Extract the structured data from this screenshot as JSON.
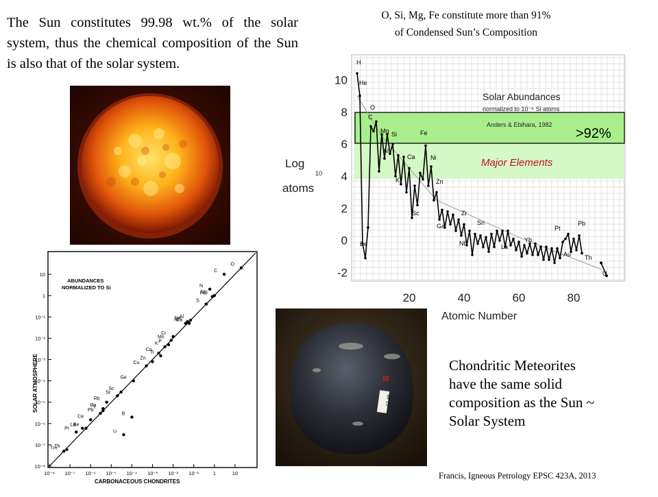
{
  "intro_text": "The Sun constitutes 99.98 wt.% of the solar system, thus the chemical composition of the Sun is also that of the solar system.",
  "top_caption": {
    "line1": "O, Si, Mg, Fe constitute more than 91%",
    "line2": "of Condensed Sun’s Composition"
  },
  "abundance_chart": {
    "title": "Solar Abundances",
    "subtitle": "normalized to 10⁻⁶ Si atoms",
    "reference": "Anders & Ebihara, 1982",
    "ylabel_main": "Log",
    "ylabel_sub": "10",
    "ylabel_unit": "atoms",
    "xlabel": "Atomic Number",
    "box_label": ">92%",
    "band_label": "Major Elements",
    "colors": {
      "band": "#a8ef8c",
      "band_light": "#d4f8c6",
      "box_edge": "#000000",
      "band_label": "#c1141b"
    }
  },
  "chart_data": [
    {
      "type": "line",
      "title": "Solar Abundances",
      "subtitle": "normalized to 10⁻⁶ Si atoms",
      "xlabel": "Atomic Number",
      "ylabel": "Log 10 atoms",
      "xlim": [
        0,
        98
      ],
      "ylim": [
        -3,
        11
      ],
      "xticks": [
        20,
        40,
        60,
        80
      ],
      "yticks": [
        -2,
        0,
        2,
        4,
        6,
        8,
        10
      ],
      "grid": true,
      "x": [
        1,
        2,
        3,
        4,
        5,
        6,
        7,
        8,
        9,
        10,
        11,
        12,
        13,
        14,
        15,
        16,
        17,
        18,
        19,
        20,
        21,
        22,
        23,
        24,
        25,
        26,
        27,
        28,
        29,
        30,
        31,
        32,
        33,
        34,
        35,
        36,
        37,
        38,
        39,
        40,
        41,
        42,
        43,
        44,
        45,
        46,
        47,
        48,
        49,
        50,
        51,
        52,
        53,
        54,
        55,
        56,
        57,
        58,
        59,
        60,
        61,
        62,
        63,
        64,
        65,
        66,
        67,
        68,
        69,
        70,
        71,
        72,
        73,
        74,
        75,
        76,
        77,
        78,
        79,
        80,
        81,
        82,
        83
      ],
      "y": [
        10.4,
        9.0,
        -0.2,
        -1.1,
        0.8,
        7.1,
        6.8,
        7.4,
        4.3,
        6.6,
        5.1,
        6.6,
        5.4,
        6.0,
        4.0,
        5.3,
        3.5,
        5.2,
        3.0,
        4.5,
        1.4,
        3.4,
        2.2,
        4.2,
        3.8,
        5.9,
        3.4,
        4.6,
        2.5,
        3.0,
        1.3,
        1.9,
        0.8,
        1.8,
        1.0,
        1.6,
        0.6,
        1.3,
        0.3,
        1.0,
        -0.3,
        0.6,
        -0.9,
        0.4,
        -0.2,
        0.3,
        -0.4,
        0.2,
        -0.7,
        0.4,
        -0.4,
        0.6,
        0.0,
        0.6,
        -0.4,
        0.6,
        -0.3,
        0.1,
        -0.6,
        -0.1,
        -1.0,
        -0.3,
        -0.8,
        -0.2,
        -0.9,
        -0.2,
        -0.9,
        -0.4,
        -1.2,
        -0.4,
        -1.2,
        -0.5,
        -1.4,
        -0.5,
        -1.1,
        -0.1,
        0.1,
        0.4,
        -0.7,
        0.1,
        -0.6,
        0.3,
        -0.8
      ]
    },
    {
      "type": "scatter",
      "xlabel": "CARBONACEOUS CHONDRITES",
      "ylabel": "SOLAR ATMOSPHERE",
      "title": "ABUNDANCES NORMALIZED TO Si",
      "xscale": "log",
      "yscale": "log",
      "xlim": [
        1e-08,
        100
      ],
      "ylim": [
        1e-08,
        100
      ],
      "xticks": [
        "10⁻⁸",
        "10⁻⁷",
        "10⁻⁶",
        "10⁻⁵",
        "10⁻⁴",
        "10⁻³",
        "10⁻²",
        "10⁻¹",
        "1",
        "10"
      ],
      "yticks": [
        "10",
        "1",
        "10⁻¹",
        "10⁻²",
        "10⁻³",
        "10⁻⁴",
        "10⁻⁵",
        "10⁻⁶",
        "10⁻⁷",
        "10⁻⁸"
      ],
      "points": [
        {
          "label": "O",
          "x": 20,
          "y": 20
        },
        {
          "label": "C",
          "x": 3,
          "y": 10
        },
        {
          "label": "N",
          "x": 0.6,
          "y": 2
        },
        {
          "label": "Fe",
          "x": 0.8,
          "y": 0.9
        },
        {
          "label": "Mg",
          "x": 1,
          "y": 1
        },
        {
          "label": "S",
          "x": 0.4,
          "y": 0.4
        },
        {
          "label": "Al",
          "x": 0.07,
          "y": 0.07
        },
        {
          "label": "Na",
          "x": 0.05,
          "y": 0.06
        },
        {
          "label": "Ni",
          "x": 0.04,
          "y": 0.05
        },
        {
          "label": "Ca",
          "x": 0.06,
          "y": 0.05
        },
        {
          "label": "Cr",
          "x": 0.01,
          "y": 0.012
        },
        {
          "label": "Mn",
          "x": 0.008,
          "y": 0.008
        },
        {
          "label": "P",
          "x": 0.006,
          "y": 0.005
        },
        {
          "label": "K",
          "x": 0.004,
          "y": 0.004
        },
        {
          "label": "Co",
          "x": 0.002,
          "y": 0.002
        },
        {
          "label": "Ti",
          "x": 0.0025,
          "y": 0.0015
        },
        {
          "label": "Zn",
          "x": 0.001,
          "y": 0.0008
        },
        {
          "label": "Cu",
          "x": 0.0005,
          "y": 0.0005
        },
        {
          "label": "Ge",
          "x": 0.00012,
          "y": 0.0001
        },
        {
          "label": "Sc",
          "x": 3e-05,
          "y": 3e-05
        },
        {
          "label": "Sr",
          "x": 2e-05,
          "y": 2e-05
        },
        {
          "label": "Rb",
          "x": 6e-06,
          "y": 1e-05
        },
        {
          "label": "Ba",
          "x": 4e-06,
          "y": 5e-06
        },
        {
          "label": "Y",
          "x": 4e-06,
          "y": 4e-06
        },
        {
          "label": "Pb",
          "x": 3e-06,
          "y": 3e-06
        },
        {
          "label": "B",
          "x": 0.0001,
          "y": 2e-06
        },
        {
          "label": "Ce",
          "x": 1e-06,
          "y": 1.5e-06
        },
        {
          "label": "La",
          "x": 4e-07,
          "y": 6e-07
        },
        {
          "label": "Be",
          "x": 6e-07,
          "y": 6e-07
        },
        {
          "label": "Pr",
          "x": 2e-07,
          "y": 4e-07
        },
        {
          "label": "Li",
          "x": 4e-05,
          "y": 3e-07
        },
        {
          "label": "Tm",
          "x": 5e-08,
          "y": 5e-08
        },
        {
          "label": "Th",
          "x": 7e-08,
          "y": 6e-08
        }
      ]
    }
  ],
  "scatter_texts": {
    "title_line1": "ABUNDANCES",
    "title_line2": "NORMALIZED TO Si",
    "xlabel": "CARBONACEOUS CHONDRITES",
    "ylabel": "SOLAR ATMOSPHERE"
  },
  "chondrite_text": {
    "line1": "Chondritic Meteorites",
    "line2": "have the same solid",
    "line3": "composition as the Sun ~",
    "line4": "Solar System"
  },
  "credit": "Francis, Igneous Petrology EPSC 423A, 2013",
  "meteorite_tag": "12 48"
}
